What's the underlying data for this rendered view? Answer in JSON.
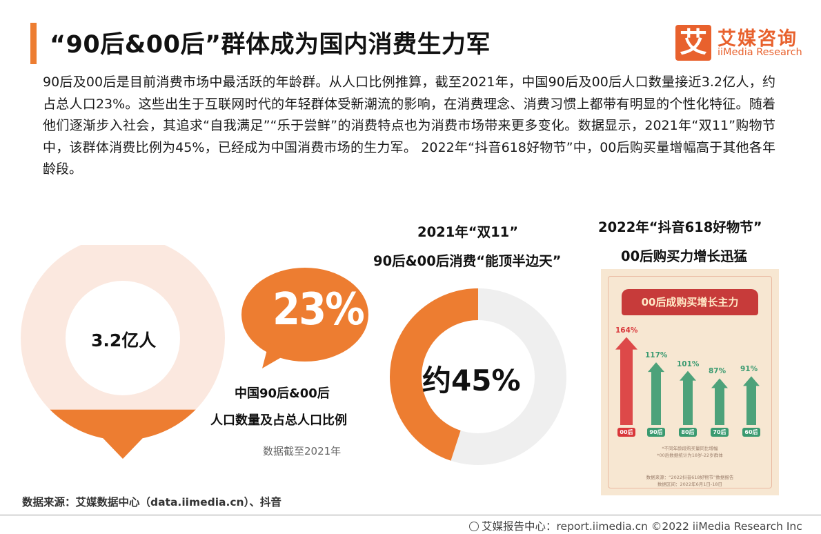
{
  "header": {
    "title": "“90后&00后”群体成为国内消费生力军",
    "logo_mark": "艾",
    "logo_cn": "艾媒咨询",
    "logo_en": "iiMedia Research"
  },
  "intro": "90后及00后是目前消费市场中最活跃的年龄群。从人口比例推算，截至2021年，中国90后及00后人口数量接近3.2亿人，约占总人口23%。这些出生于互联网时代的年轻群体受新潮流的影响，在消费理念、消费习惯上都带有明显的个性化特征。随着他们逐渐步入社会，其追求“自我满足”“乐于尝鲜”的消费特点也为消费市场带来更多变化。数据显示，2021年“双11”购物节中，该群体消费比例为45%，已经成为中国消费市场的生力军。 2022年“抖音618好物节”中，00后购买量增幅高于其他各年龄段。",
  "population": {
    "value": "3.2亿人",
    "share_label": "23%",
    "share_fraction": 0.23,
    "caption_line1": "中国90后&00后",
    "caption_line2": "人口数量及占总人口比例",
    "note": "数据截至2021年"
  },
  "double11": {
    "title_line1": "2021年“双11”",
    "title_line2": "90后&00后消费“能顶半边天”",
    "value_label": "约45%",
    "share_fraction": 0.45
  },
  "douyin618": {
    "title_line1": "2022年“抖音618好物节”",
    "title_line2": "00后购买力增长迅猛",
    "poster_title": "00后成购买增长主力",
    "chart_data": {
      "type": "bar",
      "title": "00后成购买增长主力",
      "categories": [
        "00后",
        "90后",
        "80后",
        "70后",
        "60后"
      ],
      "values": [
        164,
        117,
        101,
        87,
        91
      ],
      "value_labels": [
        "164%",
        "117%",
        "101%",
        "87%",
        "91%"
      ],
      "unit": "%"
    },
    "notes": [
      "*不同年龄段购买量同比增幅",
      "*00后数据统计为18岁-22岁群体"
    ],
    "source_line1": "数据来源：“2022抖音618好物节”数据报告",
    "source_line2": "数据区间：2022年6月1日-18日",
    "colors": {
      "highlight": "#d9373a",
      "normal": "#3a9a70"
    }
  },
  "footer": {
    "source": "数据来源：艾媒数据中心（data.iimedia.cn）、抖音",
    "right": "艾媒报告中心：report.iimedia.cn   ©2022  iiMedia Research  Inc"
  },
  "colors": {
    "accent": "#ed7d31",
    "light_peach": "#fbe8df",
    "ring_gray": "#efefef"
  }
}
